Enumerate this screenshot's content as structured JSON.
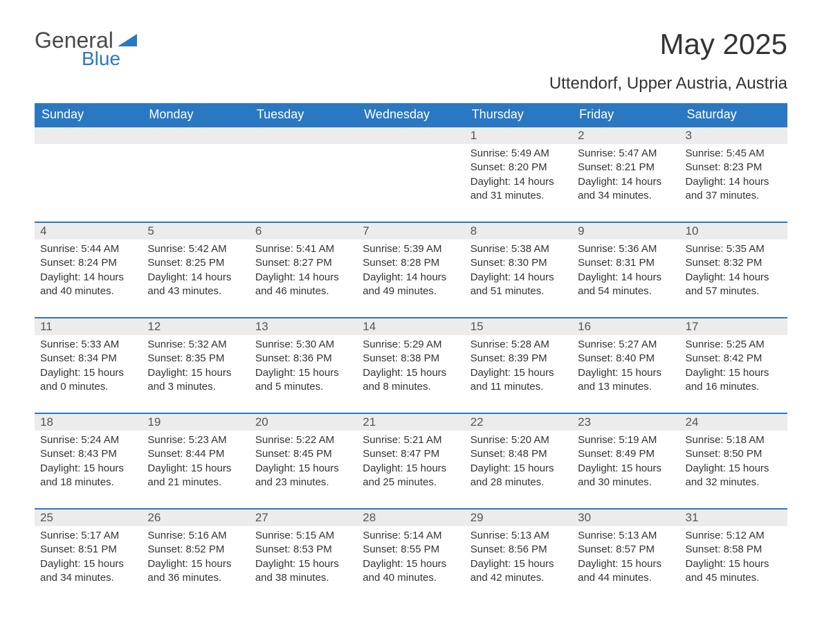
{
  "logo": {
    "part1": "General",
    "part2": "Blue",
    "triangle_color": "#2b78c2"
  },
  "title": "May 2025",
  "location": "Uttendorf, Upper Austria, Austria",
  "colors": {
    "header_bg": "#2b78c2",
    "header_text": "#ffffff",
    "row_border": "#2b78c2",
    "daynum_bg": "#ececec",
    "body_text": "#333333"
  },
  "typography": {
    "title_fontsize": 42,
    "subtitle_fontsize": 24,
    "header_fontsize": 18,
    "daynum_fontsize": 17,
    "cell_fontsize": 15
  },
  "columns": [
    "Sunday",
    "Monday",
    "Tuesday",
    "Wednesday",
    "Thursday",
    "Friday",
    "Saturday"
  ],
  "weeks": [
    [
      {
        "empty": true
      },
      {
        "empty": true
      },
      {
        "empty": true
      },
      {
        "empty": true
      },
      {
        "day": "1",
        "sunrise": "5:49 AM",
        "sunset": "8:20 PM",
        "daylight": "14 hours and 31 minutes."
      },
      {
        "day": "2",
        "sunrise": "5:47 AM",
        "sunset": "8:21 PM",
        "daylight": "14 hours and 34 minutes."
      },
      {
        "day": "3",
        "sunrise": "5:45 AM",
        "sunset": "8:23 PM",
        "daylight": "14 hours and 37 minutes."
      }
    ],
    [
      {
        "day": "4",
        "sunrise": "5:44 AM",
        "sunset": "8:24 PM",
        "daylight": "14 hours and 40 minutes."
      },
      {
        "day": "5",
        "sunrise": "5:42 AM",
        "sunset": "8:25 PM",
        "daylight": "14 hours and 43 minutes."
      },
      {
        "day": "6",
        "sunrise": "5:41 AM",
        "sunset": "8:27 PM",
        "daylight": "14 hours and 46 minutes."
      },
      {
        "day": "7",
        "sunrise": "5:39 AM",
        "sunset": "8:28 PM",
        "daylight": "14 hours and 49 minutes."
      },
      {
        "day": "8",
        "sunrise": "5:38 AM",
        "sunset": "8:30 PM",
        "daylight": "14 hours and 51 minutes."
      },
      {
        "day": "9",
        "sunrise": "5:36 AM",
        "sunset": "8:31 PM",
        "daylight": "14 hours and 54 minutes."
      },
      {
        "day": "10",
        "sunrise": "5:35 AM",
        "sunset": "8:32 PM",
        "daylight": "14 hours and 57 minutes."
      }
    ],
    [
      {
        "day": "11",
        "sunrise": "5:33 AM",
        "sunset": "8:34 PM",
        "daylight": "15 hours and 0 minutes."
      },
      {
        "day": "12",
        "sunrise": "5:32 AM",
        "sunset": "8:35 PM",
        "daylight": "15 hours and 3 minutes."
      },
      {
        "day": "13",
        "sunrise": "5:30 AM",
        "sunset": "8:36 PM",
        "daylight": "15 hours and 5 minutes."
      },
      {
        "day": "14",
        "sunrise": "5:29 AM",
        "sunset": "8:38 PM",
        "daylight": "15 hours and 8 minutes."
      },
      {
        "day": "15",
        "sunrise": "5:28 AM",
        "sunset": "8:39 PM",
        "daylight": "15 hours and 11 minutes."
      },
      {
        "day": "16",
        "sunrise": "5:27 AM",
        "sunset": "8:40 PM",
        "daylight": "15 hours and 13 minutes."
      },
      {
        "day": "17",
        "sunrise": "5:25 AM",
        "sunset": "8:42 PM",
        "daylight": "15 hours and 16 minutes."
      }
    ],
    [
      {
        "day": "18",
        "sunrise": "5:24 AM",
        "sunset": "8:43 PM",
        "daylight": "15 hours and 18 minutes."
      },
      {
        "day": "19",
        "sunrise": "5:23 AM",
        "sunset": "8:44 PM",
        "daylight": "15 hours and 21 minutes."
      },
      {
        "day": "20",
        "sunrise": "5:22 AM",
        "sunset": "8:45 PM",
        "daylight": "15 hours and 23 minutes."
      },
      {
        "day": "21",
        "sunrise": "5:21 AM",
        "sunset": "8:47 PM",
        "daylight": "15 hours and 25 minutes."
      },
      {
        "day": "22",
        "sunrise": "5:20 AM",
        "sunset": "8:48 PM",
        "daylight": "15 hours and 28 minutes."
      },
      {
        "day": "23",
        "sunrise": "5:19 AM",
        "sunset": "8:49 PM",
        "daylight": "15 hours and 30 minutes."
      },
      {
        "day": "24",
        "sunrise": "5:18 AM",
        "sunset": "8:50 PM",
        "daylight": "15 hours and 32 minutes."
      }
    ],
    [
      {
        "day": "25",
        "sunrise": "5:17 AM",
        "sunset": "8:51 PM",
        "daylight": "15 hours and 34 minutes."
      },
      {
        "day": "26",
        "sunrise": "5:16 AM",
        "sunset": "8:52 PM",
        "daylight": "15 hours and 36 minutes."
      },
      {
        "day": "27",
        "sunrise": "5:15 AM",
        "sunset": "8:53 PM",
        "daylight": "15 hours and 38 minutes."
      },
      {
        "day": "28",
        "sunrise": "5:14 AM",
        "sunset": "8:55 PM",
        "daylight": "15 hours and 40 minutes."
      },
      {
        "day": "29",
        "sunrise": "5:13 AM",
        "sunset": "8:56 PM",
        "daylight": "15 hours and 42 minutes."
      },
      {
        "day": "30",
        "sunrise": "5:13 AM",
        "sunset": "8:57 PM",
        "daylight": "15 hours and 44 minutes."
      },
      {
        "day": "31",
        "sunrise": "5:12 AM",
        "sunset": "8:58 PM",
        "daylight": "15 hours and 45 minutes."
      }
    ]
  ],
  "labels": {
    "sunrise": "Sunrise:",
    "sunset": "Sunset:",
    "daylight": "Daylight:"
  }
}
